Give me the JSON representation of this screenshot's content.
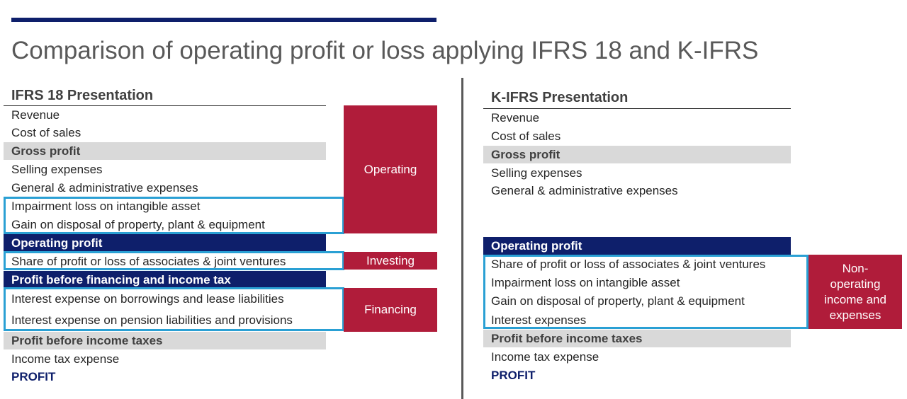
{
  "title": "Comparison of operating profit or loss applying IFRS 18 and K-IFRS",
  "left": {
    "heading": "IFRS 18 Presentation",
    "rows": [
      "Revenue",
      "Cost of sales",
      "Gross profit",
      "Selling expenses",
      "General & administrative expenses",
      "Impairment loss on intangible asset",
      "Gain on disposal of property, plant & equipment",
      "Operating profit",
      "Share of profit or loss of associates & joint ventures",
      "Profit before financing and income tax",
      "Interest expense on borrowings and lease liabilities",
      "Interest expense on pension liabilities and provisions",
      "Profit before income taxes",
      "Income tax expense",
      "PROFIT"
    ],
    "categories": {
      "operating": "Operating",
      "investing": "Investing",
      "financing": "Financing"
    }
  },
  "right": {
    "heading": "K-IFRS Presentation",
    "rows": [
      "Revenue",
      "Cost of sales",
      "Gross profit",
      "Selling expenses",
      "General & administrative expenses",
      "Operating profit",
      "Share of profit or loss of associates & joint ventures",
      "Impairment loss on intangible asset",
      "Gain on disposal of property, plant & equipment",
      "Interest expenses",
      "Profit before income taxes",
      "Income tax expense",
      "PROFIT"
    ],
    "categories": {
      "non_operating": "Non-\noperating\nincome and\nexpenses"
    }
  },
  "colors": {
    "navy": "#0e1f6b",
    "crimson": "#b01c3a",
    "highlight_blue": "#2aa0d4",
    "gray": "#d9d9d9"
  }
}
